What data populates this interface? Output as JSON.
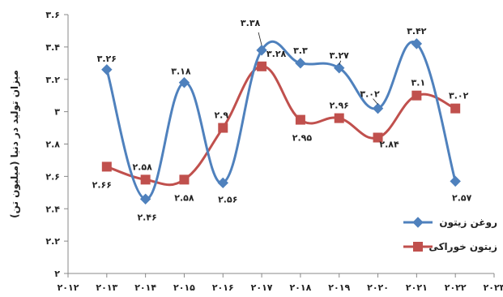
{
  "chart_data": {
    "type": "line",
    "title": "",
    "xlabel": "",
    "ylabel": "میزان تولید در دنیا (میلیون تن)",
    "x_ticks": [
      "۲۰۱۲",
      "۲۰۱۳",
      "۲۰۱۴",
      "۲۰۱۵",
      "۲۰۱۶",
      "۲۰۱۷",
      "۲۰۱۸",
      "۲۰۱۹",
      "۲۰۲۰",
      "۲۰۲۱",
      "۲۰۲۲",
      "۲۰۲۳"
    ],
    "x": [
      2013,
      2014,
      2015,
      2016,
      2017,
      2018,
      2019,
      2020,
      2021,
      2022
    ],
    "xlim": [
      2012,
      2023
    ],
    "ylim": [
      2,
      3.6
    ],
    "y_ticks": [
      {
        "value": 2,
        "label": "۲"
      },
      {
        "value": 2.2,
        "label": "۲.۲"
      },
      {
        "value": 2.4,
        "label": "۲.۴"
      },
      {
        "value": 2.6,
        "label": "۲.۶"
      },
      {
        "value": 2.8,
        "label": "۲.۸"
      },
      {
        "value": 3,
        "label": "۳"
      },
      {
        "value": 3.2,
        "label": "۳.۲"
      },
      {
        "value": 3.4,
        "label": "۳.۴"
      },
      {
        "value": 3.6,
        "label": "۳.۶"
      }
    ],
    "grid": false,
    "legend_position": "bottom-right",
    "series": [
      {
        "name": "روغن زیتون",
        "color": "#4f81bd",
        "marker": "diamond",
        "values": [
          3.26,
          2.46,
          3.18,
          2.56,
          3.38,
          3.3,
          3.27,
          3.02,
          3.42,
          2.57
        ],
        "labels": [
          "۳.۲۶",
          "۲.۴۶",
          "۳.۱۸",
          "۲.۵۶",
          "۳.۳۸",
          "۳.۳",
          "۳.۲۷",
          "۳.۰۲",
          "۳.۴۲",
          "۲.۵۷"
        ]
      },
      {
        "name": "زیتون خوراکی",
        "color": "#c0504d",
        "marker": "square",
        "values": [
          2.66,
          2.58,
          2.58,
          2.9,
          3.28,
          2.95,
          2.96,
          2.84,
          3.1,
          3.02
        ],
        "labels": [
          "۲.۶۶",
          "۲.۵۸",
          "۲.۵۸",
          "۲.۹",
          "۳.۲۸",
          "۲.۹۵",
          "۲.۹۶",
          "۲.۸۴",
          "۳.۱",
          "۳.۰۲"
        ]
      }
    ]
  }
}
